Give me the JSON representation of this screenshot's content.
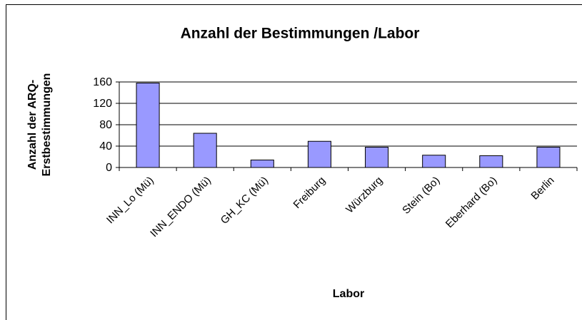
{
  "chart_data": {
    "type": "bar",
    "title": "Anzahl der Bestimmungen /Labor",
    "x_label": "Labor",
    "y_label": [
      "Anzahl der ARQ-",
      "Erstbestimmungen"
    ],
    "categories": [
      "INN_Lo (Mü)",
      "INN_ENDO (Mü)",
      "GH_KC (Mü)",
      "Freiburg",
      "Würzburg",
      "Stein (Bo)",
      "Eberhard (Bo)",
      "Berlin"
    ],
    "values": [
      158,
      64,
      14,
      49,
      38,
      23,
      22,
      38
    ],
    "color": "#9999ff",
    "ylim": [
      0,
      160
    ],
    "yticks": [
      0,
      40,
      80,
      120,
      160
    ],
    "grid": true
  }
}
